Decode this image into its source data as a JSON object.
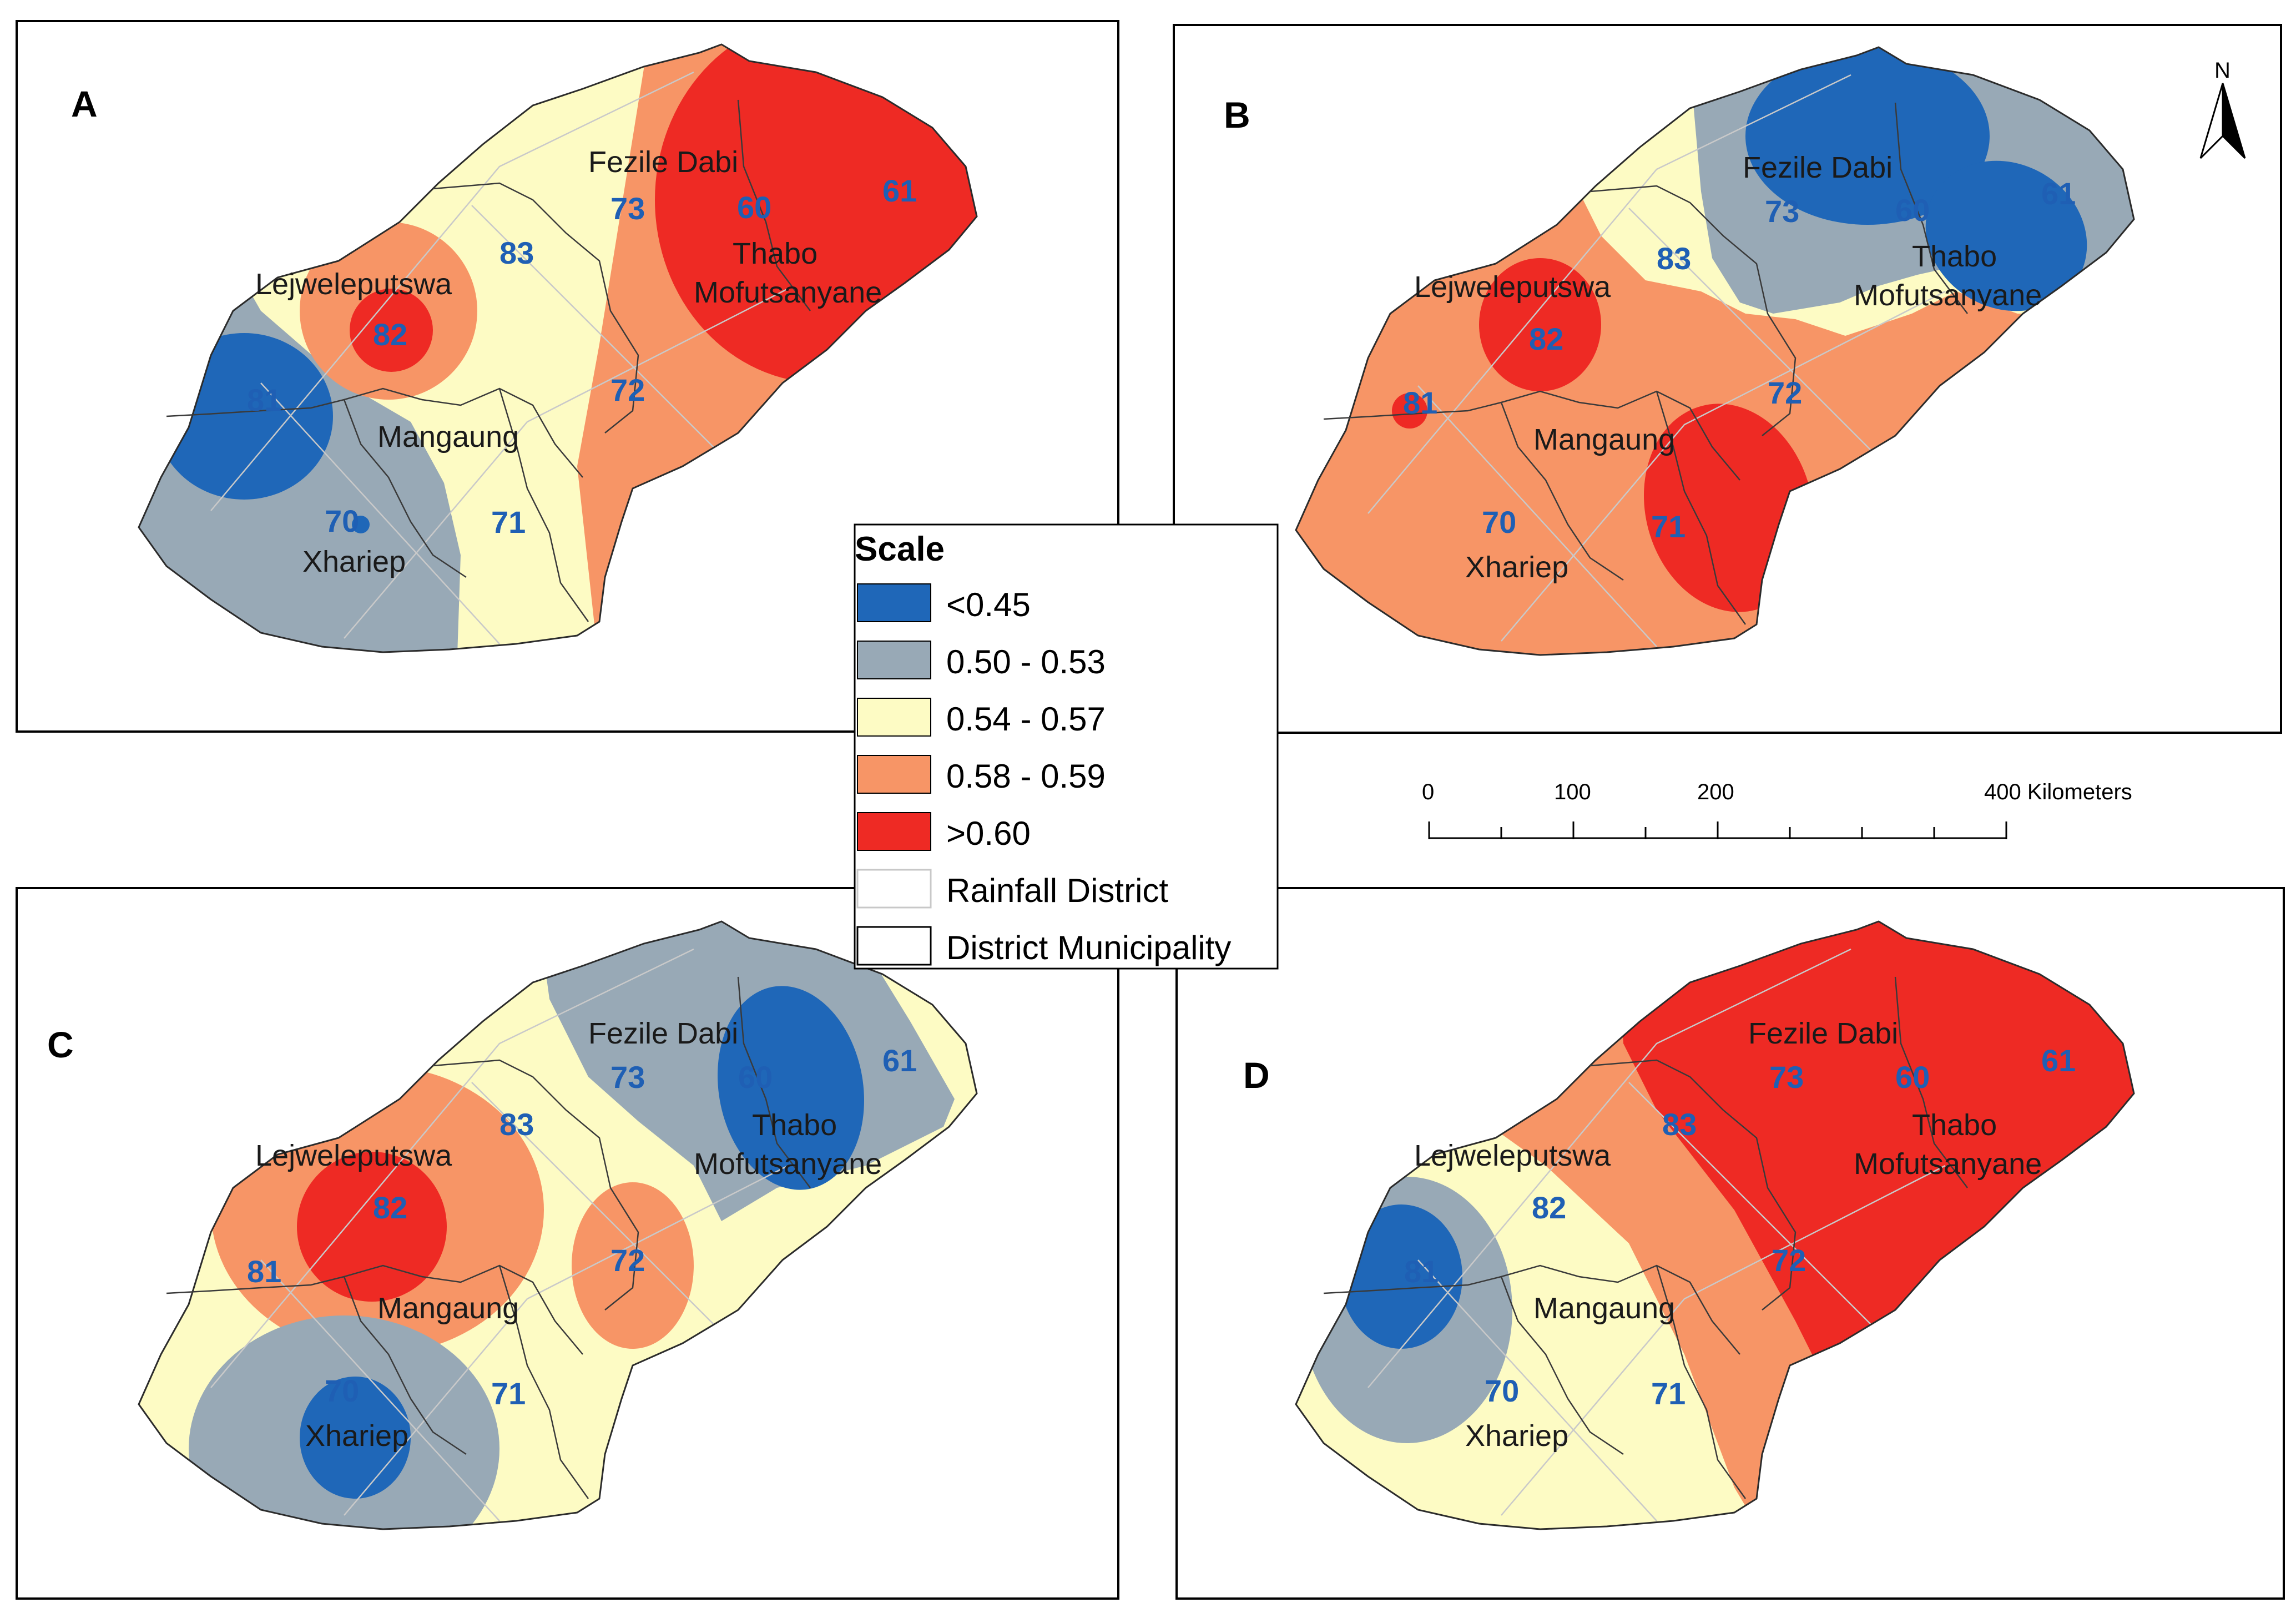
{
  "scale_levels": [
    {
      "label": "<0.45",
      "color": "#1f67b8"
    },
    {
      "label": "0.50 - 0.53",
      "color": "#98a9b6"
    },
    {
      "label": "0.54 - 0.57",
      "color": "#fdfbc4"
    },
    {
      "label": "0.58 - 0.59",
      "color": "#f79566"
    },
    {
      "label": ">0.60",
      "color": "#ee2a24"
    }
  ],
  "legend": {
    "title": "Scale",
    "rainfall_district": "Rainfall District",
    "district_municipality": "District Municipality"
  },
  "scale_bar": {
    "labels": [
      "0",
      "100",
      "200",
      "400 Kilometers"
    ]
  },
  "north_arrow": "N",
  "districts": {
    "fezile_dabi": "Fezile Dabi",
    "thabo_line1": "Thabo",
    "thabo_line2": "Mofutsanyane",
    "lejweleputswa": "Lejweleputswa",
    "mangaung": "Mangaung",
    "xhariep": "Xhariep"
  },
  "rainfall_districts": [
    "73",
    "60",
    "61",
    "83",
    "82",
    "81",
    "72",
    "70",
    "71"
  ],
  "panels": [
    {
      "label": "A"
    },
    {
      "label": "B"
    },
    {
      "label": "C"
    },
    {
      "label": "D"
    }
  ]
}
